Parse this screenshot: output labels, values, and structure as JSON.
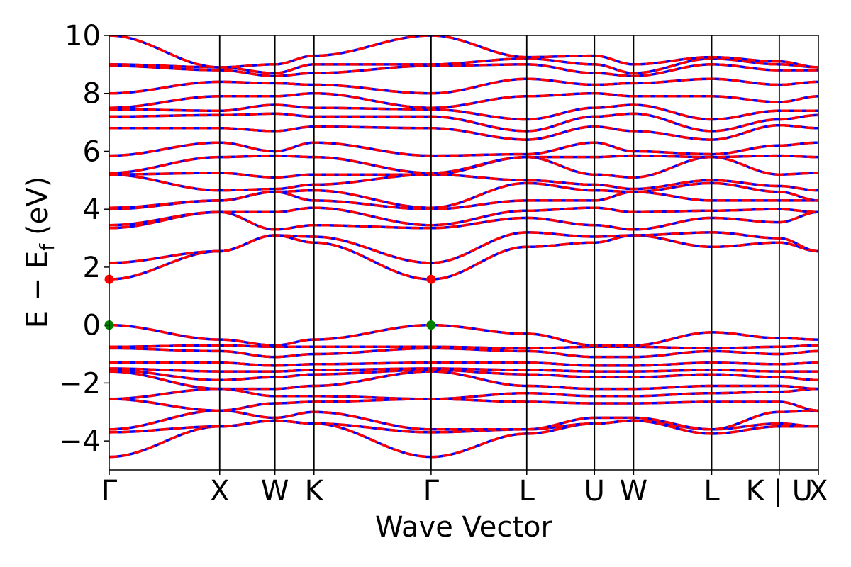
{
  "chart_data": {
    "type": "line",
    "title": "",
    "xlabel": "Wave Vector",
    "ylabel": "E − E",
    "ylabel_subscript": "f",
    "ylabel_unit": "(eV)",
    "ylim": [
      -5,
      10
    ],
    "yticks": [
      "−4",
      "−2",
      "0",
      "2",
      "4",
      "6",
      "8",
      "10"
    ],
    "ytick_values": [
      -4,
      -2,
      0,
      2,
      4,
      6,
      8,
      10
    ],
    "kpath": [
      {
        "label": "Γ",
        "x": 0.0
      },
      {
        "label": "X",
        "x": 1.0
      },
      {
        "label": "W",
        "x": 1.5
      },
      {
        "label": "K",
        "x": 1.854
      },
      {
        "label": "Γ",
        "x": 2.914
      },
      {
        "label": "L",
        "x": 3.78
      },
      {
        "label": "U",
        "x": 4.393
      },
      {
        "label": "W",
        "x": 4.747
      },
      {
        "label": "L",
        "x": 5.454
      },
      {
        "label": "K | U",
        "x": 6.066
      },
      {
        "label": "X",
        "x": 6.42
      }
    ],
    "xlim": [
      0,
      6.42
    ],
    "series": [
      {
        "name": "",
        "color": "#0000ff",
        "style": "solid"
      },
      {
        "name": "",
        "color": "#ff0000",
        "style": "dashed"
      }
    ],
    "markers": [
      {
        "x": 0.0,
        "y": 1.58,
        "color": "#ff0000",
        "kind": "CBM"
      },
      {
        "x": 2.914,
        "y": 1.58,
        "color": "#ff0000",
        "kind": "CBM"
      },
      {
        "x": 0.0,
        "y": 0.0,
        "color": "#008000",
        "kind": "VBM"
      },
      {
        "x": 2.914,
        "y": 0.0,
        "color": "#008000",
        "kind": "VBM"
      }
    ],
    "band_anchors": [
      [
        -4.55,
        -3.5,
        -3.3,
        -3.4,
        -4.55,
        -3.75,
        -3.4,
        -3.3,
        -3.75,
        -3.5,
        -3.5
      ],
      [
        -3.7,
        -3.5,
        -3.3,
        -3.4,
        -3.7,
        -3.6,
        -3.4,
        -3.3,
        -3.6,
        -3.4,
        -3.5
      ],
      [
        -3.6,
        -2.95,
        -3.2,
        -3.0,
        -3.6,
        -3.6,
        -3.2,
        -3.2,
        -3.6,
        -3.0,
        -2.95
      ],
      [
        -2.55,
        -2.95,
        -2.7,
        -2.65,
        -2.55,
        -2.65,
        -2.7,
        -2.7,
        -2.65,
        -2.65,
        -2.95
      ],
      [
        -2.55,
        -2.2,
        -2.45,
        -2.45,
        -2.55,
        -2.35,
        -2.45,
        -2.45,
        -2.35,
        -2.3,
        -2.2
      ],
      [
        -1.6,
        -2.2,
        -2.2,
        -2.1,
        -1.6,
        -2.1,
        -2.2,
        -2.2,
        -2.1,
        -2.1,
        -2.2
      ],
      [
        -1.55,
        -1.9,
        -1.8,
        -1.7,
        -1.55,
        -1.7,
        -1.8,
        -1.8,
        -1.7,
        -1.8,
        -1.9
      ],
      [
        -1.5,
        -1.6,
        -1.6,
        -1.55,
        -1.5,
        -1.55,
        -1.6,
        -1.6,
        -1.55,
        -1.6,
        -1.6
      ],
      [
        -1.3,
        -1.3,
        -1.4,
        -1.35,
        -1.3,
        -1.3,
        -1.4,
        -1.4,
        -1.3,
        -1.35,
        -1.3
      ],
      [
        -0.8,
        -0.9,
        -1.1,
        -1.0,
        -0.8,
        -0.9,
        -1.1,
        -1.1,
        -0.9,
        -1.0,
        -0.9
      ],
      [
        -0.75,
        -0.7,
        -0.75,
        -0.75,
        -0.75,
        -0.8,
        -0.75,
        -0.75,
        -0.8,
        -0.75,
        -0.7
      ],
      [
        0.0,
        -0.5,
        -0.7,
        -0.5,
        0.0,
        -0.3,
        -0.7,
        -0.7,
        -0.25,
        -0.45,
        -0.5
      ],
      [
        1.58,
        2.55,
        3.1,
        2.85,
        1.58,
        2.7,
        2.85,
        3.1,
        2.7,
        2.85,
        2.55
      ],
      [
        2.15,
        2.55,
        3.1,
        3.05,
        2.15,
        3.2,
        3.05,
        3.1,
        3.2,
        3.0,
        2.55
      ],
      [
        3.35,
        3.9,
        3.3,
        3.45,
        3.35,
        3.7,
        3.45,
        3.3,
        3.7,
        3.55,
        3.9
      ],
      [
        3.45,
        3.9,
        3.9,
        4.05,
        3.45,
        3.95,
        4.05,
        3.9,
        3.95,
        4.0,
        3.9
      ],
      [
        4.0,
        4.3,
        4.6,
        4.3,
        4.0,
        4.3,
        4.3,
        4.6,
        4.3,
        4.3,
        4.3
      ],
      [
        4.05,
        4.3,
        4.6,
        4.65,
        4.05,
        4.9,
        4.65,
        4.6,
        4.9,
        4.6,
        4.3
      ],
      [
        5.2,
        4.65,
        4.7,
        4.85,
        5.2,
        5.0,
        4.85,
        4.7,
        5.0,
        4.8,
        4.65
      ],
      [
        5.2,
        5.25,
        5.1,
        5.2,
        5.2,
        5.8,
        5.2,
        5.1,
        5.8,
        5.2,
        5.25
      ],
      [
        5.25,
        5.8,
        5.85,
        5.8,
        5.25,
        5.8,
        5.8,
        5.85,
        5.8,
        5.85,
        5.8
      ],
      [
        5.85,
        6.3,
        6.0,
        6.3,
        5.85,
        5.9,
        6.3,
        6.0,
        5.9,
        6.2,
        6.3
      ],
      [
        6.8,
        6.8,
        6.7,
        6.85,
        6.8,
        6.4,
        6.85,
        6.7,
        6.4,
        6.9,
        6.8
      ],
      [
        7.2,
        7.25,
        7.3,
        7.2,
        7.2,
        6.7,
        7.2,
        7.3,
        6.7,
        7.1,
        7.25
      ],
      [
        7.45,
        7.4,
        7.6,
        7.5,
        7.45,
        7.1,
        7.5,
        7.6,
        7.1,
        7.4,
        7.4
      ],
      [
        7.5,
        7.9,
        7.9,
        8.0,
        7.5,
        7.9,
        8.0,
        7.9,
        7.9,
        7.7,
        7.9
      ],
      [
        8.0,
        8.4,
        8.35,
        8.3,
        8.0,
        8.5,
        8.3,
        8.35,
        8.5,
        8.3,
        8.4
      ],
      [
        8.95,
        8.8,
        8.6,
        8.7,
        8.95,
        9.0,
        8.7,
        8.6,
        9.0,
        8.8,
        8.8
      ],
      [
        9.0,
        8.9,
        8.7,
        9.0,
        9.0,
        9.2,
        9.0,
        8.7,
        9.2,
        9.0,
        8.9
      ],
      [
        10.0,
        8.9,
        9.0,
        9.3,
        10.0,
        9.25,
        9.3,
        9.0,
        9.25,
        9.1,
        8.9
      ]
    ]
  }
}
